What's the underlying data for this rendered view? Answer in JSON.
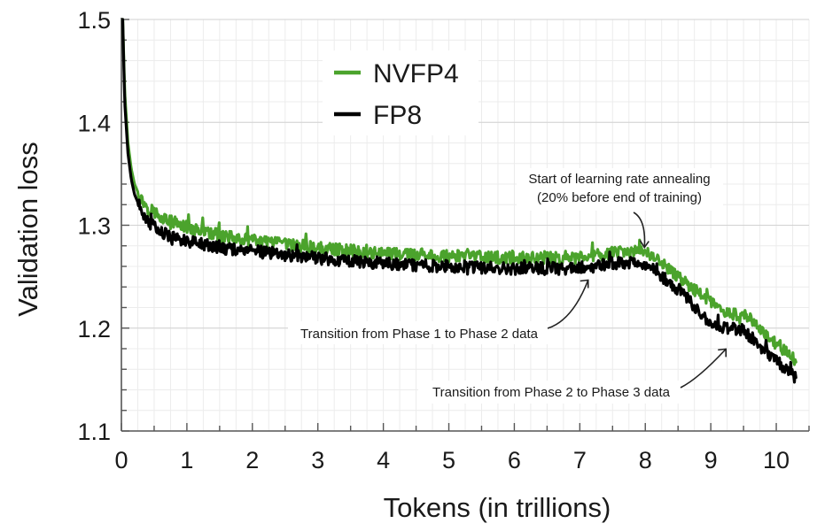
{
  "chart_data": {
    "type": "line",
    "xlabel": "Tokens (in trillions)",
    "ylabel": "Validation loss",
    "xlim": [
      0,
      10.5
    ],
    "ylim": [
      1.1,
      1.5
    ],
    "x_ticks": [
      0,
      1,
      2,
      3,
      4,
      5,
      6,
      7,
      8,
      9,
      10
    ],
    "x_tick_labels": [
      "0",
      "1",
      "2",
      "3",
      "4",
      "5",
      "6",
      "7",
      "8",
      "9",
      "10"
    ],
    "y_ticks": [
      1.1,
      1.2,
      1.3,
      1.4,
      1.5
    ],
    "y_tick_labels": [
      "1.1",
      "1.2",
      "1.3",
      "1.4",
      "1.5"
    ],
    "grid": true,
    "legend_position": "top-center",
    "series": [
      {
        "name": "NVFP4",
        "color": "#4ba32c",
        "x": [
          0.02,
          0.05,
          0.1,
          0.15,
          0.2,
          0.3,
          0.4,
          0.5,
          0.7,
          1.0,
          1.5,
          2.0,
          3.0,
          4.0,
          5.0,
          6.0,
          7.0,
          7.5,
          8.0,
          8.5,
          9.0,
          9.2,
          9.5,
          10.0,
          10.3
        ],
        "y": [
          1.5,
          1.43,
          1.38,
          1.355,
          1.34,
          1.325,
          1.318,
          1.313,
          1.305,
          1.298,
          1.29,
          1.285,
          1.278,
          1.273,
          1.27,
          1.268,
          1.268,
          1.273,
          1.275,
          1.25,
          1.225,
          1.215,
          1.213,
          1.185,
          1.168
        ]
      },
      {
        "name": "FP8",
        "color": "#000000",
        "x": [
          0.02,
          0.05,
          0.1,
          0.15,
          0.2,
          0.3,
          0.4,
          0.5,
          0.7,
          1.0,
          1.5,
          2.0,
          3.0,
          4.0,
          5.0,
          6.0,
          7.0,
          7.5,
          8.0,
          8.5,
          9.0,
          9.2,
          9.5,
          10.0,
          10.3
        ],
        "y": [
          1.5,
          1.42,
          1.37,
          1.345,
          1.33,
          1.315,
          1.305,
          1.298,
          1.29,
          1.285,
          1.278,
          1.275,
          1.268,
          1.263,
          1.26,
          1.258,
          1.258,
          1.263,
          1.263,
          1.238,
          1.205,
          1.2,
          1.198,
          1.168,
          1.152
        ]
      }
    ],
    "annotations": [
      {
        "lines": [
          "Start of learning rate annealing",
          "(20% before end of training)"
        ],
        "x": 8.0,
        "y": 1.275
      },
      {
        "lines": [
          "Transition from Phase 1 to Phase 2 data"
        ],
        "x": 7.1,
        "y": 1.257
      },
      {
        "lines": [
          "Transition from Phase 2 to Phase 3 data"
        ],
        "x": 9.15,
        "y": 1.19
      }
    ]
  }
}
